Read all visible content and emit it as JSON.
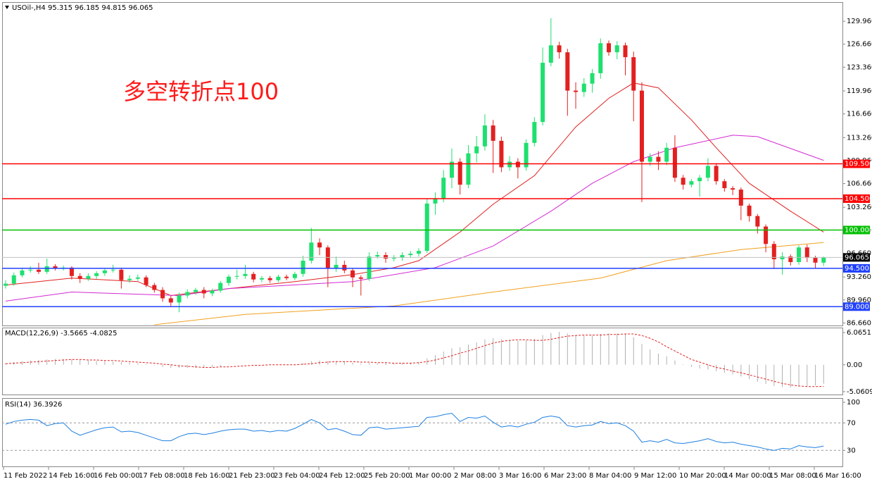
{
  "chart_data": [
    {
      "type": "candlestick",
      "title": "USOil-,H4",
      "ohlc_label": "95.315 96.185 94.815 96.065",
      "annotation": "多空转折点100",
      "x_labels": [
        "11 Feb 2022",
        "14 Feb 16:00",
        "16 Feb 00:00",
        "17 Feb 08:00",
        "18 Feb 16:00",
        "21 Feb 23:00",
        "23 Feb 04:00",
        "24 Feb 12:00",
        "25 Feb 20:00",
        "1 Mar 00:00",
        "2 Mar 08:00",
        "3 Mar 16:00",
        "6 Mar 23:00",
        "8 Mar 04:00",
        "9 Mar 12:00",
        "10 Mar 20:00",
        "14 Mar 00:00",
        "15 Mar 08:00",
        "16 Mar 16:00"
      ],
      "up_color": "#1ee06e",
      "down_color": "#e32020",
      "open": [
        92.0,
        92.3,
        93.5,
        94.2,
        94.3,
        94.0,
        94.8,
        94.5,
        94.6,
        93.4,
        93.0,
        93.4,
        93.8,
        94.2,
        94.3,
        92.8,
        93.0,
        93.2,
        92.1,
        91.4,
        90.2,
        89.6,
        90.6,
        91.1,
        91.4,
        90.9,
        91.3,
        92.4,
        93.3,
        93.4,
        93.7,
        92.9,
        93.1,
        92.8,
        93.3,
        93.1,
        93.7,
        95.6,
        98.2,
        97.5,
        94.5,
        95.0,
        94.2,
        93.2,
        93.0,
        96.2,
        96.4,
        95.9,
        96.0,
        96.4,
        96.6,
        97.0,
        103.8,
        104.5,
        107.5,
        109.8,
        106.5,
        111.0,
        112.0,
        115.0,
        112.8,
        109.0,
        109.8,
        109.0,
        112.5,
        115.5,
        124.0,
        126.5,
        125.5,
        120.0,
        119.8,
        121.0,
        122.5,
        126.8,
        125.5,
        126.5,
        124.8,
        120.0,
        109.8,
        110.5,
        109.8,
        111.8,
        107.5,
        106.5,
        107.0,
        107.5,
        109.2,
        107.0,
        106.0,
        105.8,
        103.5,
        102.0,
        100.5,
        98.0,
        95.8,
        96.2,
        95.4,
        97.5,
        96.0,
        95.315
      ],
      "high": [
        92.8,
        93.9,
        94.6,
        94.8,
        95.3,
        95.9,
        95.1,
        94.9,
        94.8,
        93.8,
        93.8,
        94.1,
        94.5,
        95.0,
        94.6,
        93.5,
        93.6,
        93.5,
        92.4,
        91.8,
        90.6,
        91.0,
        91.5,
        91.7,
        91.8,
        91.6,
        92.7,
        93.6,
        94.3,
        95.0,
        94.0,
        93.4,
        93.4,
        93.6,
        93.6,
        94.0,
        96.3,
        100.3,
        98.8,
        97.8,
        96.2,
        95.6,
        94.5,
        93.5,
        96.8,
        96.9,
        96.8,
        96.4,
        96.8,
        97.0,
        97.4,
        104.5,
        105.4,
        108.6,
        111.7,
        110.3,
        112.2,
        113.5,
        116.6,
        115.8,
        113.4,
        110.6,
        110.3,
        113.0,
        116.2,
        126.2,
        130.4,
        127.0,
        126.0,
        121.2,
        121.8,
        123.1,
        127.5,
        127.2,
        127.1,
        126.9,
        125.6,
        121.2,
        111.0,
        111.3,
        112.5,
        113.6,
        107.9,
        107.3,
        107.9,
        110.3,
        109.6,
        107.3,
        106.3,
        106.1,
        103.8,
        102.3,
        100.8,
        98.4,
        96.8,
        96.5,
        97.8,
        97.9,
        96.3,
        96.185
      ],
      "low": [
        91.6,
        92.0,
        93.2,
        93.9,
        93.7,
        93.7,
        94.2,
        94.2,
        92.9,
        92.4,
        92.7,
        93.0,
        93.4,
        93.9,
        91.6,
        92.4,
        92.7,
        91.8,
        91.0,
        89.7,
        89.1,
        88.2,
        90.2,
        90.7,
        90.2,
        90.5,
        91.0,
        92.0,
        92.9,
        93.0,
        92.5,
        92.5,
        92.4,
        92.5,
        92.8,
        92.8,
        93.3,
        95.2,
        96.4,
        91.8,
        94.0,
        93.8,
        91.8,
        90.6,
        92.7,
        95.9,
        95.3,
        95.5,
        95.6,
        96.0,
        96.2,
        96.7,
        102.2,
        104.0,
        106.0,
        105.1,
        106.0,
        109.7,
        111.4,
        108.2,
        108.3,
        108.5,
        107.4,
        108.5,
        112.0,
        115.0,
        123.5,
        124.6,
        116.4,
        117.4,
        119.1,
        119.7,
        121.7,
        125.0,
        124.5,
        122.2,
        115.6,
        104.0,
        109.2,
        108.6,
        109.3,
        106.9,
        105.8,
        106.1,
        104.8,
        107.0,
        106.5,
        105.5,
        105.0,
        101.4,
        101.2,
        99.5,
        96.8,
        94.4,
        93.6,
        94.9,
        95.0,
        95.4,
        94.5,
        94.815
      ],
      "close": [
        92.3,
        93.5,
        94.2,
        94.3,
        94.0,
        94.8,
        94.5,
        94.6,
        93.4,
        93.0,
        93.4,
        93.8,
        94.2,
        94.3,
        92.8,
        93.0,
        93.2,
        92.1,
        91.4,
        90.2,
        89.6,
        90.6,
        91.1,
        91.4,
        90.9,
        91.3,
        92.4,
        93.3,
        93.4,
        93.7,
        92.9,
        93.1,
        92.8,
        93.3,
        93.1,
        93.7,
        95.6,
        98.2,
        97.5,
        94.5,
        95.0,
        94.2,
        93.2,
        93.0,
        96.2,
        96.4,
        95.9,
        96.0,
        96.4,
        96.6,
        97.0,
        103.8,
        104.5,
        107.5,
        109.8,
        106.5,
        111.0,
        112.0,
        115.0,
        112.8,
        109.0,
        109.8,
        109.0,
        112.5,
        115.5,
        124.0,
        126.5,
        125.5,
        120.0,
        119.8,
        121.0,
        122.5,
        126.8,
        125.5,
        126.5,
        124.8,
        120.0,
        109.8,
        110.5,
        109.8,
        111.8,
        107.5,
        106.5,
        107.0,
        107.5,
        109.2,
        107.0,
        106.0,
        105.8,
        103.5,
        102.0,
        100.5,
        98.0,
        95.8,
        96.2,
        95.4,
        97.5,
        96.0,
        95.315,
        96.065
      ],
      "series": [
        {
          "color": "#e02020",
          "x": [
            0,
            8,
            16,
            20,
            27,
            35,
            42,
            47,
            50,
            55,
            59,
            64,
            69,
            73,
            76,
            79,
            83,
            86,
            90,
            95,
            99
          ],
          "values": [
            92.1,
            93.1,
            92.6,
            90.6,
            91.6,
            92.6,
            93.6,
            94.6,
            95.6,
            99.7,
            103.7,
            107.8,
            114.8,
            118.9,
            121.1,
            120.4,
            115.8,
            111.8,
            106.7,
            102.7,
            99.7
          ]
        },
        {
          "color": "#d22ad2",
          "x": [
            0,
            8,
            21,
            27,
            42,
            52,
            59,
            66,
            71,
            76,
            81,
            88,
            91,
            99
          ],
          "values": [
            89.8,
            91.1,
            90.6,
            91.6,
            92.6,
            94.6,
            97.7,
            102.7,
            106.7,
            109.8,
            111.8,
            113.6,
            113.4,
            110.0
          ]
        },
        {
          "color": "#f0a020",
          "x": [
            18,
            29,
            47,
            59,
            72,
            80,
            89,
            99
          ],
          "values": [
            86.4,
            87.9,
            89.1,
            91.1,
            93.1,
            95.6,
            97.2,
            98.2
          ]
        }
      ],
      "levels": [
        {
          "value": 109.5,
          "label": "109.500",
          "color": "#ff0000"
        },
        {
          "value": 104.5,
          "label": "104.500",
          "color": "#ff0000"
        },
        {
          "value": 100,
          "label": "100.000",
          "color": "#00c000"
        },
        {
          "value": 94.5,
          "label": "94.500",
          "color": "#2040ff"
        },
        {
          "value": 89,
          "label": "89.000",
          "color": "#2040ff"
        }
      ],
      "ylim": [
        86.3,
        132.7
      ],
      "yticks": [
        {
          "value": 129.96,
          "label": "129.960"
        },
        {
          "value": 126.66,
          "label": "126.660"
        },
        {
          "value": 123.36,
          "label": "123.360"
        },
        {
          "value": 119.96,
          "label": "119.960"
        },
        {
          "value": 116.66,
          "label": "116.660"
        },
        {
          "value": 113.26,
          "label": "113.260"
        },
        {
          "value": 109.96,
          "label": "109.960"
        },
        {
          "value": 106.66,
          "label": "106.660"
        },
        {
          "value": 103.26,
          "label": "103.260"
        },
        {
          "value": 99.96,
          "label": "99.960"
        },
        {
          "value": 96.66,
          "label": "96.660"
        },
        {
          "value": 93.26,
          "label": "93.260"
        },
        {
          "value": 89.96,
          "label": "89.960"
        },
        {
          "value": 86.66,
          "label": "86.660"
        }
      ]
    },
    {
      "type": "macd",
      "title": "MACD(12,26,9) -3.5665 -4.0825",
      "color": "#b0b0b0",
      "signal_color": "#e02020",
      "histogram": [
        0.3,
        0.5,
        0.7,
        0.8,
        0.9,
        1.0,
        1.1,
        1.1,
        1.0,
        0.9,
        0.8,
        0.7,
        0.7,
        0.6,
        0.5,
        0.4,
        0.3,
        0.1,
        -0.1,
        -0.4,
        -0.6,
        -0.6,
        -0.6,
        -0.6,
        -0.5,
        -0.4,
        -0.3,
        -0.1,
        0.0,
        0.0,
        0.0,
        0.0,
        0.0,
        0.0,
        0.0,
        0.1,
        0.3,
        0.7,
        0.8,
        0.7,
        0.7,
        0.6,
        0.4,
        0.2,
        0.3,
        0.3,
        0.3,
        0.3,
        0.3,
        0.4,
        0.5,
        1.2,
        1.8,
        2.5,
        3.1,
        3.3,
        3.8,
        4.2,
        4.8,
        5.0,
        4.8,
        4.7,
        4.5,
        4.6,
        4.9,
        5.6,
        6.0,
        6.2,
        5.9,
        5.6,
        5.5,
        5.5,
        5.8,
        5.9,
        5.9,
        5.8,
        5.2,
        3.9,
        2.9,
        2.1,
        1.6,
        0.8,
        0.1,
        -0.4,
        -0.7,
        -0.9,
        -1.2,
        -1.5,
        -1.8,
        -2.2,
        -2.7,
        -3.2,
        -3.6,
        -4.0,
        -4.2,
        -4.3,
        -4.1,
        -4.0,
        -3.9,
        -3.5665
      ],
      "signal": [
        0.2,
        0.3,
        0.4,
        0.5,
        0.6,
        0.7,
        0.8,
        0.9,
        1.0,
        1.0,
        0.9,
        0.9,
        0.8,
        0.8,
        0.7,
        0.6,
        0.5,
        0.4,
        0.3,
        0.1,
        0.0,
        -0.2,
        -0.3,
        -0.4,
        -0.5,
        -0.5,
        -0.4,
        -0.4,
        -0.3,
        -0.2,
        -0.1,
        -0.1,
        0.0,
        0.0,
        0.0,
        0.0,
        0.1,
        0.2,
        0.4,
        0.5,
        0.6,
        0.6,
        0.6,
        0.5,
        0.5,
        0.4,
        0.4,
        0.3,
        0.3,
        0.3,
        0.4,
        0.6,
        0.9,
        1.3,
        1.7,
        2.2,
        2.6,
        3.1,
        3.6,
        4.1,
        4.4,
        4.6,
        4.7,
        4.7,
        4.6,
        4.6,
        4.8,
        5.1,
        5.4,
        5.5,
        5.6,
        5.6,
        5.6,
        5.7,
        5.7,
        5.8,
        5.8,
        5.5,
        5.0,
        4.3,
        3.4,
        2.6,
        1.8,
        1.0,
        0.5,
        0.0,
        -0.5,
        -0.8,
        -1.2,
        -1.5,
        -1.9,
        -2.3,
        -2.7,
        -3.1,
        -3.5,
        -3.8,
        -4.0,
        -4.1,
        -4.1,
        -4.0825
      ],
      "ylim": [
        -5.6,
        7.0
      ],
      "yticks": [
        6.0651,
        {
          "value": 0,
          "label": "0.00"
        },
        -5.0609
      ]
    },
    {
      "type": "rsi",
      "title": "RSI(14) 36.3926",
      "color": "#1e7fe0",
      "values": [
        68,
        72,
        74,
        75,
        74,
        66,
        69,
        70,
        58,
        52,
        56,
        60,
        63,
        64,
        57,
        58,
        56,
        52,
        48,
        44,
        44,
        50,
        54,
        55,
        53,
        55,
        58,
        60,
        61,
        61,
        58,
        59,
        57,
        59,
        58,
        62,
        68,
        75,
        70,
        60,
        62,
        58,
        53,
        52,
        63,
        64,
        61,
        62,
        63,
        64,
        65,
        78,
        79,
        82,
        84,
        72,
        78,
        77,
        80,
        71,
        64,
        66,
        64,
        68,
        71,
        78,
        80,
        78,
        66,
        64,
        66,
        67,
        72,
        69,
        70,
        66,
        58,
        42,
        44,
        42,
        46,
        41,
        40,
        42,
        44,
        47,
        43,
        41,
        42,
        39,
        37,
        35,
        32,
        30,
        33,
        32,
        37,
        35,
        34,
        36.3926
      ],
      "levels": [
        70,
        30
      ],
      "ylim": [
        6.7,
        106.2
      ],
      "yticks": [
        100,
        70,
        30
      ]
    }
  ]
}
